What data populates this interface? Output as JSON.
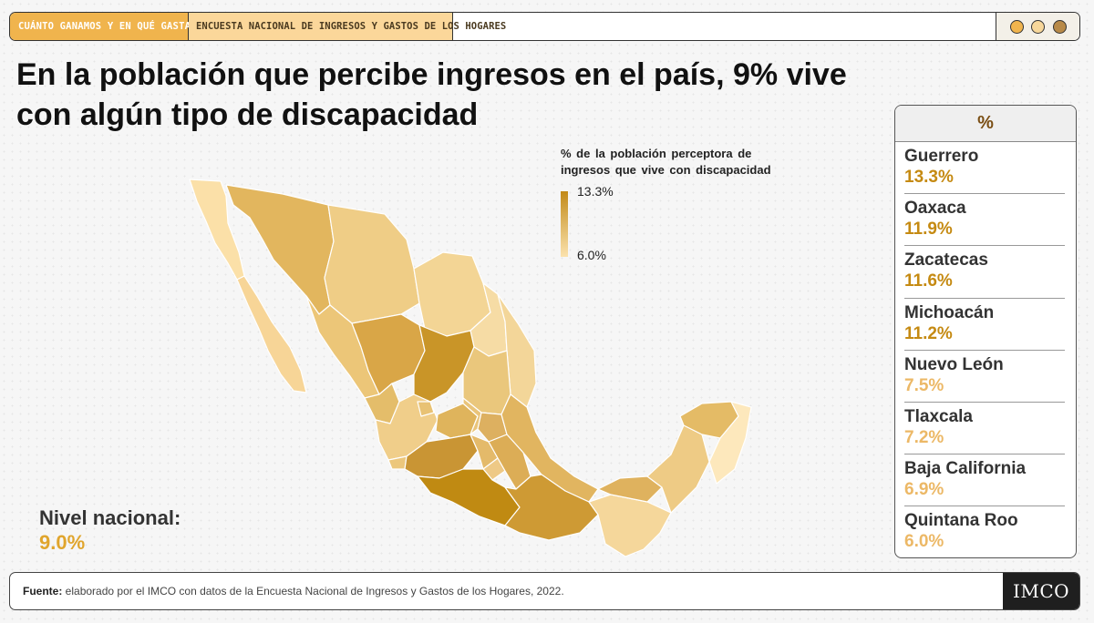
{
  "header": {
    "tab1": "CUÁNTO GANAMOS Y EN QUÉ GASTAMOS",
    "tab2": "ENCUESTA NACIONAL DE INGRESOS Y GASTOS DE LOS HOGARES",
    "dot_colors": [
      "#f0b44d",
      "#f7d79a",
      "#b88a48"
    ]
  },
  "title": "En la población que percibe ingresos en el país, 9% vive con algún tipo de discapacidad",
  "legend": {
    "title": "% de la población perceptora de ingresos que vive con discapacidad",
    "max_label": "13.3%",
    "min_label": "6.0%",
    "color_high": "#c28a18",
    "color_low": "#fbe2ad"
  },
  "national": {
    "label": "Nivel nacional:",
    "value": "9.0%"
  },
  "ranking": {
    "header": "%",
    "items": [
      {
        "name": "Guerrero",
        "value": "13.3%",
        "color": "#c58a12"
      },
      {
        "name": "Oaxaca",
        "value": "11.9%",
        "color": "#c58a12"
      },
      {
        "name": "Zacatecas",
        "value": "11.6%",
        "color": "#c58a12"
      },
      {
        "name": "Michoacán",
        "value": "11.2%",
        "color": "#c58a12"
      },
      {
        "name": "Nuevo León",
        "value": "7.5%",
        "color": "#ecb866"
      },
      {
        "name": "Tlaxcala",
        "value": "7.2%",
        "color": "#ecb866"
      },
      {
        "name": "Baja California",
        "value": "6.9%",
        "color": "#ecb866"
      },
      {
        "name": "Quintana Roo",
        "value": "6.0%",
        "color": "#ecb866"
      }
    ]
  },
  "footer": {
    "label": "Fuente:",
    "text": " elaborado por el IMCO con datos de la Encuesta Nacional de Ingresos y Gastos de los Hogares, 2022.",
    "logo": "IMCO"
  },
  "chart_data": {
    "type": "choropleth",
    "value_range": [
      6.0,
      13.3
    ],
    "states": [
      {
        "name": "Guerrero",
        "value": 13.3
      },
      {
        "name": "Oaxaca",
        "value": 11.9
      },
      {
        "name": "Zacatecas",
        "value": 11.6
      },
      {
        "name": "Michoacán",
        "value": 11.2
      },
      {
        "name": "Nuevo León",
        "value": 7.5
      },
      {
        "name": "Tlaxcala",
        "value": 7.2
      },
      {
        "name": "Baja California",
        "value": 6.9
      },
      {
        "name": "Quintana Roo",
        "value": 6.0
      }
    ]
  }
}
